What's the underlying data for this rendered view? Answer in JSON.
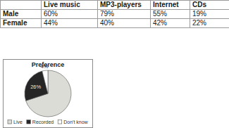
{
  "table": {
    "columns": [
      "Live music",
      "MP3-players",
      "Internet",
      "CDs"
    ],
    "rows": [
      {
        "label": "Male",
        "cells": [
          "60%",
          "79%",
          "55%",
          "19%"
        ]
      },
      {
        "label": "Female",
        "cells": [
          "44%",
          "40%",
          "42%",
          "22%"
        ]
      }
    ]
  },
  "chart_data": {
    "type": "pie",
    "title": "Preference",
    "categories": [
      "Live",
      "Recorded",
      "Don't know"
    ],
    "values": [
      70,
      26,
      4
    ],
    "value_labels": [
      null,
      "26%",
      "4%"
    ],
    "colors": [
      "#dcdcd6",
      "#262626",
      "#ffffff"
    ],
    "data_labels": true,
    "legend": "bottom"
  }
}
